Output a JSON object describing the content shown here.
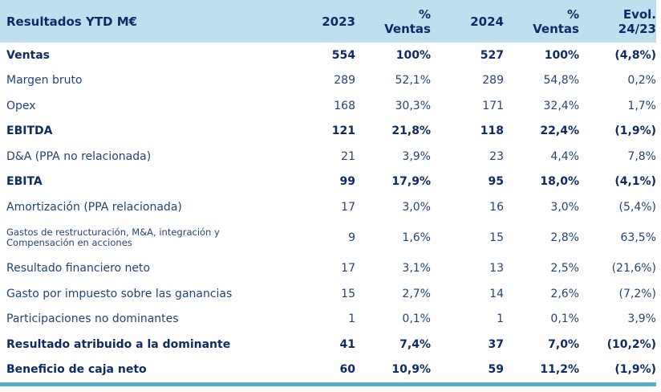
{
  "title": "Resultados YTD M€",
  "colors": {
    "header_bg": "#BEDFED",
    "text_bold": "#0E2B66",
    "text_regular": "#24437E",
    "bottom_rule": "#55AECE"
  },
  "header": {
    "col0": "Resultados YTD M€",
    "col1": "2023",
    "col2": "%\nVentas",
    "col3": "2024",
    "col4": "%\nVentas",
    "col5": "Evol.\n24/23"
  },
  "chart_data": {
    "type": "table",
    "title": "Resultados YTD M€",
    "columns": [
      "Resultados YTD M€",
      "2023",
      "% Ventas",
      "2024",
      "% Ventas",
      "Evol. 24/23"
    ],
    "rows": [
      {
        "label": "Ventas",
        "y2023": "554",
        "pct2023": "100%",
        "y2024": "527",
        "pct2024": "100%",
        "evol": "(4,8%)",
        "emphasis": "bold"
      },
      {
        "label": "Margen bruto",
        "y2023": "289",
        "pct2023": "52,1%",
        "y2024": "289",
        "pct2024": "54,8%",
        "evol": "0,2%",
        "emphasis": "normal"
      },
      {
        "label": "Opex",
        "y2023": "168",
        "pct2023": "30,3%",
        "y2024": "171",
        "pct2024": "32,4%",
        "evol": "1,7%",
        "emphasis": "normal"
      },
      {
        "label": "EBITDA",
        "y2023": "121",
        "pct2023": "21,8%",
        "y2024": "118",
        "pct2024": "22,4%",
        "evol": "(1,9%)",
        "emphasis": "bold"
      },
      {
        "label": "D&A (PPA no relacionada)",
        "y2023": "21",
        "pct2023": "3,9%",
        "y2024": "23",
        "pct2024": "4,4%",
        "evol": "7,8%",
        "emphasis": "normal"
      },
      {
        "label": "EBITA",
        "y2023": "99",
        "pct2023": "17,9%",
        "y2024": "95",
        "pct2024": "18,0%",
        "evol": "(4,1%)",
        "emphasis": "bold"
      },
      {
        "label": "Amortización (PPA relacionada)",
        "y2023": "17",
        "pct2023": "3,0%",
        "y2024": "16",
        "pct2024": "3,0%",
        "evol": "(5,4%)",
        "emphasis": "normal"
      },
      {
        "label": "Gastos de restructuración, M&A, integración y\nCompensación en acciones",
        "y2023": "9",
        "pct2023": "1,6%",
        "y2024": "15",
        "pct2024": "2,8%",
        "evol": "63,5%",
        "emphasis": "small"
      },
      {
        "label": "Resultado financiero neto",
        "y2023": "17",
        "pct2023": "3,1%",
        "y2024": "13",
        "pct2024": "2,5%",
        "evol": "(21,6%)",
        "emphasis": "normal"
      },
      {
        "label": "Gasto por impuesto sobre las ganancias",
        "y2023": "15",
        "pct2023": "2,7%",
        "y2024": "14",
        "pct2024": "2,6%",
        "evol": "(7,2%)",
        "emphasis": "normal"
      },
      {
        "label": "Participaciones no dominantes",
        "y2023": "1",
        "pct2023": "0,1%",
        "y2024": "1",
        "pct2024": "0,1%",
        "evol": "3,9%",
        "emphasis": "normal"
      },
      {
        "label": "Resultado atribuido a la dominante",
        "y2023": "41",
        "pct2023": "7,4%",
        "y2024": "37",
        "pct2024": "7,0%",
        "evol": "(10,2%)",
        "emphasis": "bold"
      },
      {
        "label": "Beneficio de caja neto",
        "y2023": "60",
        "pct2023": "10,9%",
        "y2024": "59",
        "pct2024": "11,2%",
        "evol": "(1,9%)",
        "emphasis": "bold"
      }
    ]
  }
}
